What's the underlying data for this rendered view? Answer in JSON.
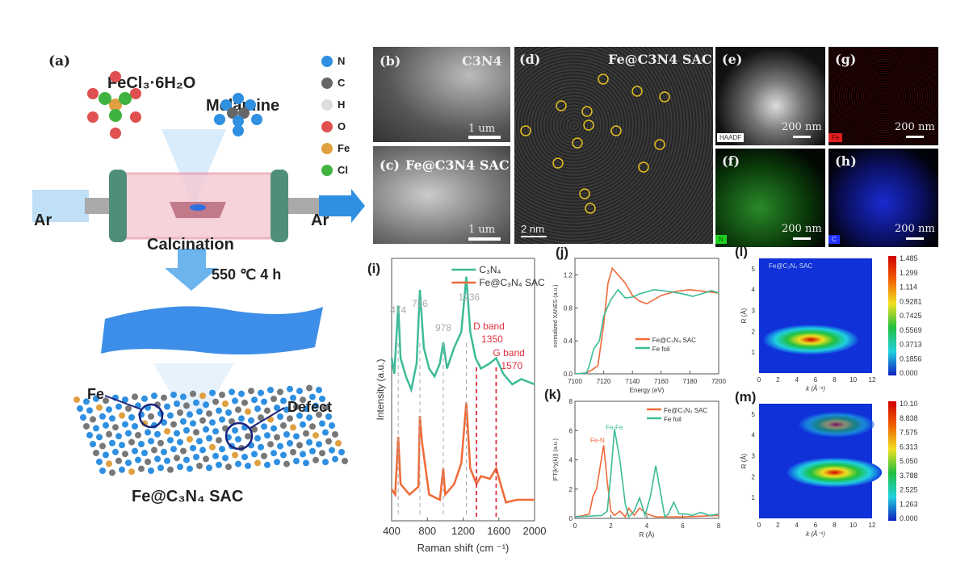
{
  "panel_a": {
    "label": "(a)",
    "precursor_1": "FeCl₃·6H₂O",
    "precursor_2": "Melamine",
    "gas_in": "Ar",
    "gas_out": "Ar",
    "process": "Calcination",
    "condition": "550 ℃ 4 h",
    "site_label": "Fe",
    "defect_label": "Defect",
    "product": "Fe@C₃N₄ SAC",
    "legend": [
      {
        "label": "N",
        "color": "#2f8fe0"
      },
      {
        "label": "C",
        "color": "#666666"
      },
      {
        "label": "H",
        "color": "#dddddd"
      },
      {
        "label": "O",
        "color": "#e05050"
      },
      {
        "label": "Fe",
        "color": "#e0a040"
      },
      {
        "label": "Cl",
        "color": "#3fb23f"
      }
    ]
  },
  "panel_b": {
    "label": "(b)",
    "title": "C3N4",
    "scale": "1 um"
  },
  "panel_c": {
    "label": "(c)",
    "title": "Fe@C3N4 SAC",
    "scale": "1 um"
  },
  "panel_d": {
    "label": "(d)",
    "title": "Fe@C3N4 SAC",
    "scale": "2 nm"
  },
  "panel_e": {
    "label": "(e)",
    "tag": "HAADF",
    "scale": "200 nm"
  },
  "panel_g": {
    "label": "(g)",
    "tag": "Fe",
    "scale": "200 nm",
    "color": "#e02020"
  },
  "panel_f": {
    "label": "(f)",
    "tag": "N",
    "scale": "200 nm",
    "color": "#20d020"
  },
  "panel_h": {
    "label": "(h)",
    "tag": "C",
    "scale": "200 nm",
    "color": "#2030ff"
  },
  "chart_data": [
    {
      "id": "i",
      "label": "(i)",
      "type": "line",
      "xlabel": "Raman shift (cm ⁻¹)",
      "ylabel": "Intensity (a.u.)",
      "xlim": [
        400,
        2000
      ],
      "xticks": [
        "400",
        "800",
        "1200",
        "1600",
        "2000"
      ],
      "legend": "top-right",
      "series": [
        {
          "name": "C₃N₄",
          "color": "#3dbb98",
          "points": [
            [
              400,
              0.62
            ],
            [
              430,
              0.56
            ],
            [
              474,
              0.82
            ],
            [
              500,
              0.62
            ],
            [
              560,
              0.55
            ],
            [
              620,
              0.5
            ],
            [
              680,
              0.6
            ],
            [
              716,
              0.88
            ],
            [
              760,
              0.66
            ],
            [
              820,
              0.58
            ],
            [
              880,
              0.55
            ],
            [
              940,
              0.6
            ],
            [
              978,
              0.68
            ],
            [
              1020,
              0.58
            ],
            [
              1100,
              0.66
            ],
            [
              1180,
              0.72
            ],
            [
              1236,
              0.93
            ],
            [
              1280,
              0.72
            ],
            [
              1340,
              0.62
            ],
            [
              1400,
              0.58
            ],
            [
              1500,
              0.6
            ],
            [
              1570,
              0.62
            ],
            [
              1650,
              0.56
            ],
            [
              1750,
              0.52
            ],
            [
              1850,
              0.54
            ],
            [
              2000,
              0.52
            ]
          ]
        },
        {
          "name": "Fe@C₃N₄ SAC",
          "color": "#ef6a38",
          "points": [
            [
              400,
              0.12
            ],
            [
              440,
              0.1
            ],
            [
              474,
              0.32
            ],
            [
              500,
              0.14
            ],
            [
              600,
              0.1
            ],
            [
              700,
              0.13
            ],
            [
              716,
              0.4
            ],
            [
              740,
              0.3
            ],
            [
              760,
              0.25
            ],
            [
              820,
              0.1
            ],
            [
              940,
              0.08
            ],
            [
              978,
              0.2
            ],
            [
              1000,
              0.1
            ],
            [
              1100,
              0.14
            ],
            [
              1180,
              0.22
            ],
            [
              1236,
              0.45
            ],
            [
              1280,
              0.2
            ],
            [
              1350,
              0.14
            ],
            [
              1400,
              0.17
            ],
            [
              1500,
              0.16
            ],
            [
              1570,
              0.2
            ],
            [
              1620,
              0.14
            ],
            [
              1680,
              0.07
            ],
            [
              1800,
              0.08
            ],
            [
              2000,
              0.08
            ]
          ]
        }
      ],
      "peak_marks": [
        {
          "x": 474,
          "text": "474",
          "color": "#aaaaaa"
        },
        {
          "x": 716,
          "text": "716",
          "color": "#aaaaaa"
        },
        {
          "x": 978,
          "text": "978",
          "color": "#aaaaaa"
        },
        {
          "x": 1236,
          "text": "1236",
          "color": "#aaaaaa"
        },
        {
          "x": 1350,
          "text": "D band",
          "text2": "1350",
          "color": "#e03040"
        },
        {
          "x": 1570,
          "text": "G band",
          "text2": "1570",
          "color": "#e03040"
        }
      ]
    },
    {
      "id": "j",
      "label": "(j)",
      "type": "line",
      "xlabel": "Energy (eV)",
      "ylabel": "normalized XANES (a.u.)",
      "xlim": [
        7100,
        7200
      ],
      "ylim": [
        0,
        1.4
      ],
      "xticks": [
        "7100",
        "7120",
        "7140",
        "7160",
        "7180",
        "7200"
      ],
      "yticks": [
        "0.0",
        "0.4",
        "0.8",
        "1.2"
      ],
      "legend": "bottom-right",
      "series": [
        {
          "name": "Fe@C₃N₄ SAC",
          "color": "#ef6a38",
          "points": [
            [
              7100,
              0
            ],
            [
              7108,
              0.01
            ],
            [
              7112,
              0.05
            ],
            [
              7116,
              0.1
            ],
            [
              7120,
              0.6
            ],
            [
              7123,
              1.1
            ],
            [
              7126,
              1.28
            ],
            [
              7130,
              1.2
            ],
            [
              7135,
              1.1
            ],
            [
              7140,
              0.95
            ],
            [
              7145,
              0.88
            ],
            [
              7150,
              0.85
            ],
            [
              7160,
              0.95
            ],
            [
              7170,
              1.0
            ],
            [
              7180,
              1.02
            ],
            [
              7190,
              1.0
            ],
            [
              7200,
              0.98
            ]
          ]
        },
        {
          "name": "Fe foil",
          "color": "#3dbb98",
          "points": [
            [
              7100,
              0
            ],
            [
              7108,
              0.01
            ],
            [
              7110,
              0.1
            ],
            [
              7113,
              0.3
            ],
            [
              7117,
              0.4
            ],
            [
              7120,
              0.7
            ],
            [
              7125,
              0.9
            ],
            [
              7130,
              1.02
            ],
            [
              7135,
              0.92
            ],
            [
              7140,
              0.93
            ],
            [
              7145,
              0.97
            ],
            [
              7155,
              1.02
            ],
            [
              7165,
              1.0
            ],
            [
              7175,
              0.97
            ],
            [
              7182,
              0.94
            ],
            [
              7190,
              0.98
            ],
            [
              7195,
              1.01
            ],
            [
              7200,
              0.98
            ]
          ]
        }
      ]
    },
    {
      "id": "k",
      "label": "(k)",
      "type": "line",
      "xlabel": "R (Å)",
      "ylabel": "|FT(k³χ(k))| (a.u.)",
      "xlim": [
        0,
        8
      ],
      "ylim": [
        0,
        8
      ],
      "xticks": [
        "0",
        "2",
        "4",
        "6",
        "8"
      ],
      "yticks": [
        "0",
        "2",
        "4",
        "6",
        "8"
      ],
      "legend": "top-right",
      "annotations": [
        {
          "text": "Fe-N",
          "color": "#ef6a38"
        },
        {
          "text": "Fe-Fe",
          "color": "#3dbb98"
        }
      ],
      "series": [
        {
          "name": "Fe@C₃N₄ SAC",
          "color": "#ef6a38",
          "points": [
            [
              0,
              0.1
            ],
            [
              0.5,
              0.2
            ],
            [
              0.8,
              0.3
            ],
            [
              1.0,
              1.5
            ],
            [
              1.2,
              2.0
            ],
            [
              1.4,
              3.5
            ],
            [
              1.6,
              5.0
            ],
            [
              1.8,
              2.5
            ],
            [
              2.0,
              0.5
            ],
            [
              2.2,
              0.2
            ],
            [
              2.5,
              0.5
            ],
            [
              2.8,
              0.1
            ],
            [
              3.0,
              0.7
            ],
            [
              3.3,
              0.2
            ],
            [
              3.6,
              0.7
            ],
            [
              4.0,
              0.3
            ],
            [
              4.5,
              0.1
            ],
            [
              6,
              0.1
            ],
            [
              8,
              0.2
            ]
          ]
        },
        {
          "name": "Fe foil",
          "color": "#3dbb98",
          "points": [
            [
              0,
              0.1
            ],
            [
              1.5,
              0.2
            ],
            [
              1.8,
              0.5
            ],
            [
              2.0,
              3.0
            ],
            [
              2.2,
              6.1
            ],
            [
              2.5,
              4
            ],
            [
              2.8,
              1
            ],
            [
              3.0,
              0.1
            ],
            [
              3.3,
              0.5
            ],
            [
              3.6,
              1.4
            ],
            [
              3.9,
              0.2
            ],
            [
              4.2,
              1.5
            ],
            [
              4.5,
              3.6
            ],
            [
              4.8,
              1.5
            ],
            [
              5.0,
              0.1
            ],
            [
              5.2,
              0.3
            ],
            [
              5.5,
              1.1
            ],
            [
              5.8,
              0.3
            ],
            [
              6.2,
              0.3
            ],
            [
              6.5,
              0.2
            ],
            [
              7.0,
              0.4
            ],
            [
              7.5,
              0.2
            ],
            [
              8,
              0.3
            ]
          ]
        }
      ]
    },
    {
      "id": "l",
      "label": "(l)",
      "type": "heatmap",
      "title": "Fe@C₃N₄ SAC",
      "xlabel": "k (Å⁻¹)",
      "ylabel": "R (Å)",
      "xlim": [
        0,
        12
      ],
      "ylim": [
        0,
        5.5
      ],
      "xticks": [
        "0",
        "2",
        "4",
        "6",
        "8",
        "10",
        "12"
      ],
      "yticks": [
        "1",
        "2",
        "3",
        "4",
        "5"
      ],
      "colorbar": [
        "1.485",
        "1.299",
        "1.114",
        "0.9281",
        "0.7425",
        "0.5569",
        "0.3713",
        "0.1856",
        "0.000"
      ],
      "peaks": [
        {
          "k": 5.5,
          "R": 1.6,
          "value": 1.485
        }
      ]
    },
    {
      "id": "m",
      "label": "(m)",
      "type": "heatmap",
      "xlabel": "k (Å⁻¹)",
      "ylabel": "R (Å)",
      "xlim": [
        0,
        12
      ],
      "ylim": [
        0,
        5.5
      ],
      "xticks": [
        "0",
        "2",
        "4",
        "6",
        "8",
        "10",
        "12"
      ],
      "yticks": [
        "1",
        "2",
        "3",
        "4",
        "5"
      ],
      "colorbar": [
        "10.10",
        "8.838",
        "7.575",
        "6.313",
        "5.050",
        "3.788",
        "2.525",
        "1.263",
        "0.000"
      ],
      "peaks": [
        {
          "k": 8.0,
          "R": 2.2,
          "value": 10.1
        },
        {
          "k": 8.2,
          "R": 4.5,
          "value": 5.0
        }
      ]
    }
  ]
}
